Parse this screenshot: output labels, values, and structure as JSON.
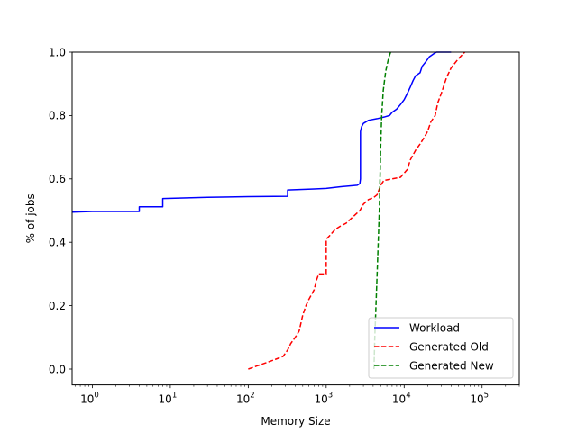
{
  "chart_data": {
    "type": "line",
    "xlabel": "Memory Size",
    "ylabel": "% of jobs",
    "xscale": "log",
    "xlim": [
      0.55,
      300000
    ],
    "ylim": [
      -0.05,
      1.0
    ],
    "grid": false,
    "legend_position": "lower-right",
    "x_ticks": [
      {
        "value": 1,
        "base": "10",
        "exp": "0"
      },
      {
        "value": 10,
        "base": "10",
        "exp": "1"
      },
      {
        "value": 100,
        "base": "10",
        "exp": "2"
      },
      {
        "value": 1000,
        "base": "10",
        "exp": "3"
      },
      {
        "value": 10000,
        "base": "10",
        "exp": "4"
      },
      {
        "value": 100000,
        "base": "10",
        "exp": "5"
      }
    ],
    "y_ticks": [
      {
        "value": 0.0,
        "label": "0.0"
      },
      {
        "value": 0.2,
        "label": "0.2"
      },
      {
        "value": 0.4,
        "label": "0.4"
      },
      {
        "value": 0.6,
        "label": "0.6"
      },
      {
        "value": 0.8,
        "label": "0.8"
      },
      {
        "value": 1.0,
        "label": "1.0"
      }
    ],
    "series": [
      {
        "name": "Workload",
        "color": "#0000ff",
        "dash": "solid",
        "points": [
          [
            0.55,
            0.495
          ],
          [
            1,
            0.497
          ],
          [
            4,
            0.497
          ],
          [
            4,
            0.512
          ],
          [
            8,
            0.512
          ],
          [
            8,
            0.538
          ],
          [
            30,
            0.542
          ],
          [
            100,
            0.544
          ],
          [
            320,
            0.545
          ],
          [
            320,
            0.565
          ],
          [
            700,
            0.568
          ],
          [
            1000,
            0.57
          ],
          [
            1500,
            0.575
          ],
          [
            2500,
            0.58
          ],
          [
            2700,
            0.585
          ],
          [
            2750,
            0.6
          ],
          [
            2750,
            0.75
          ],
          [
            2850,
            0.765
          ],
          [
            3000,
            0.775
          ],
          [
            3500,
            0.785
          ],
          [
            4500,
            0.79
          ],
          [
            5500,
            0.795
          ],
          [
            6500,
            0.8
          ],
          [
            7000,
            0.81
          ],
          [
            8000,
            0.82
          ],
          [
            9000,
            0.835
          ],
          [
            10000,
            0.85
          ],
          [
            11000,
            0.87
          ],
          [
            12000,
            0.89
          ],
          [
            13000,
            0.91
          ],
          [
            14000,
            0.925
          ],
          [
            16000,
            0.935
          ],
          [
            17000,
            0.955
          ],
          [
            19000,
            0.97
          ],
          [
            21000,
            0.985
          ],
          [
            24000,
            0.995
          ],
          [
            26000,
            1.0
          ],
          [
            40000,
            1.0
          ]
        ]
      },
      {
        "name": "Generated Old",
        "color": "#ff0000",
        "dash": "dashed",
        "points": [
          [
            100,
            0.0
          ],
          [
            130,
            0.01
          ],
          [
            170,
            0.02
          ],
          [
            220,
            0.03
          ],
          [
            280,
            0.04
          ],
          [
            320,
            0.06
          ],
          [
            350,
            0.08
          ],
          [
            400,
            0.1
          ],
          [
            450,
            0.12
          ],
          [
            500,
            0.17
          ],
          [
            550,
            0.2
          ],
          [
            600,
            0.22
          ],
          [
            700,
            0.25
          ],
          [
            750,
            0.28
          ],
          [
            800,
            0.3
          ],
          [
            1000,
            0.3
          ],
          [
            1000,
            0.41
          ],
          [
            1100,
            0.42
          ],
          [
            1300,
            0.44
          ],
          [
            1500,
            0.45
          ],
          [
            1800,
            0.46
          ],
          [
            2200,
            0.48
          ],
          [
            2700,
            0.5
          ],
          [
            3000,
            0.52
          ],
          [
            3500,
            0.535
          ],
          [
            4000,
            0.54
          ],
          [
            4500,
            0.55
          ],
          [
            5000,
            0.58
          ],
          [
            5500,
            0.595
          ],
          [
            7000,
            0.6
          ],
          [
            9000,
            0.605
          ],
          [
            11000,
            0.63
          ],
          [
            12000,
            0.66
          ],
          [
            14000,
            0.69
          ],
          [
            16000,
            0.71
          ],
          [
            18000,
            0.73
          ],
          [
            20000,
            0.75
          ],
          [
            22000,
            0.78
          ],
          [
            25000,
            0.8
          ],
          [
            27000,
            0.84
          ],
          [
            30000,
            0.87
          ],
          [
            35000,
            0.92
          ],
          [
            40000,
            0.95
          ],
          [
            50000,
            0.98
          ],
          [
            60000,
            1.0
          ]
        ]
      },
      {
        "name": "Generated New",
        "color": "#008000",
        "dash": "dashed",
        "points": [
          [
            4100,
            0.0
          ],
          [
            4200,
            0.1
          ],
          [
            4350,
            0.2
          ],
          [
            4500,
            0.3
          ],
          [
            4650,
            0.4
          ],
          [
            4800,
            0.5
          ],
          [
            4900,
            0.6
          ],
          [
            5000,
            0.7
          ],
          [
            5150,
            0.8
          ],
          [
            5400,
            0.88
          ],
          [
            5800,
            0.94
          ],
          [
            6300,
            0.98
          ],
          [
            6700,
            1.0
          ]
        ]
      }
    ]
  }
}
